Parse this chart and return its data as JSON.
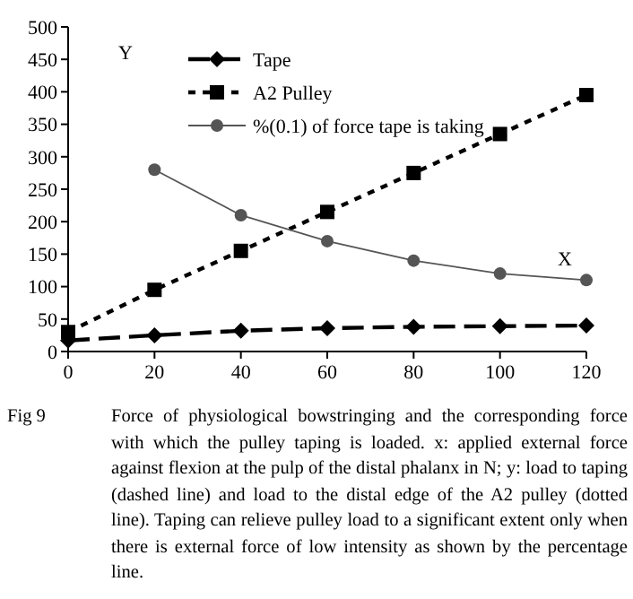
{
  "chart_data": {
    "type": "line",
    "x": [
      0,
      20,
      40,
      60,
      80,
      100,
      120
    ],
    "xlim": [
      0,
      120
    ],
    "xticks": [
      0,
      20,
      40,
      60,
      80,
      100,
      120
    ],
    "ylim": [
      0,
      500
    ],
    "yticks": [
      0,
      50,
      100,
      150,
      200,
      250,
      300,
      350,
      400,
      450,
      500
    ],
    "grid": false,
    "legend": "top",
    "series": [
      {
        "name": "Tape",
        "color": "#000000",
        "marker": "diamond",
        "line_style": "dashed",
        "values": [
          17,
          25,
          32,
          36,
          38,
          39,
          40
        ]
      },
      {
        "name": "A2 Pulley",
        "color": "#000000",
        "marker": "square",
        "line_style": "dotted",
        "values": [
          30,
          95,
          155,
          215,
          275,
          335,
          395
        ]
      },
      {
        "name": "%(0.1) of force tape is taking",
        "color": "#555555",
        "marker": "circle",
        "line_style": "solid",
        "values": [
          null,
          280,
          210,
          170,
          140,
          120,
          110
        ]
      }
    ],
    "annotations": [
      "Y",
      "X",
      "Fig 9",
      "Force of physiological bowstringing and the corresponding force with which the pulley taping is loaded. x: applied external force against flexion at the pulp of the distal phalanx in N; y: load to taping (dashed line) and load to the distal edge of the A2 pulley (dotted line). Taping can relieve pulley load to a significant extent only when there is external force of low intensity as shown by the percentage line."
    ]
  }
}
